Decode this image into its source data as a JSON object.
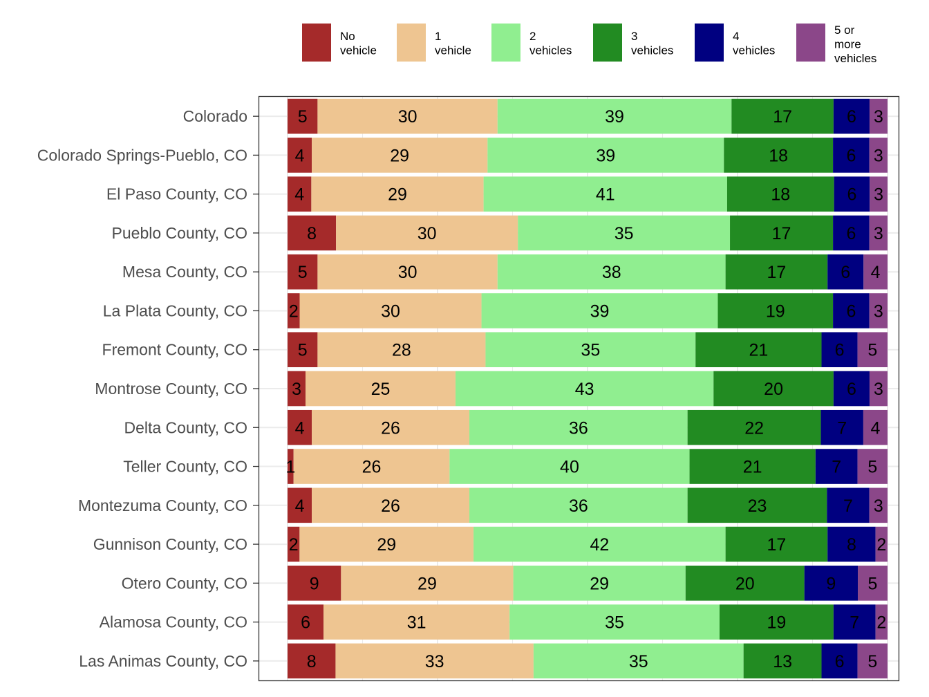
{
  "chart_data": {
    "type": "bar",
    "orientation": "horizontal",
    "stacked": true,
    "normalized_percent": true,
    "grid": true,
    "legend_position": "top",
    "categories": [
      "Colorado",
      "Colorado Springs-Pueblo, CO",
      "El Paso County, CO",
      "Pueblo County, CO",
      "Mesa County, CO",
      "La Plata County, CO",
      "Fremont County, CO",
      "Montrose County, CO",
      "Delta County, CO",
      "Teller County, CO",
      "Montezuma County, CO",
      "Gunnison County, CO",
      "Otero County, CO",
      "Alamosa County, CO",
      "Las Animas County, CO"
    ],
    "series": [
      {
        "name": "No vehicle",
        "legend_lines": [
          "No",
          "vehicle"
        ],
        "color": "#a52a2a",
        "values": [
          5,
          4,
          4,
          8,
          5,
          2,
          5,
          3,
          4,
          1,
          4,
          2,
          9,
          6,
          8
        ]
      },
      {
        "name": "1 vehicle",
        "legend_lines": [
          "1",
          "vehicle"
        ],
        "color": "#eec591",
        "values": [
          30,
          29,
          29,
          30,
          30,
          30,
          28,
          25,
          26,
          26,
          26,
          29,
          29,
          31,
          33
        ]
      },
      {
        "name": "2 vehicles",
        "legend_lines": [
          "2",
          "vehicles"
        ],
        "color": "#90ee90",
        "values": [
          39,
          39,
          41,
          35,
          38,
          39,
          35,
          43,
          36,
          40,
          36,
          42,
          29,
          35,
          35
        ]
      },
      {
        "name": "3 vehicles",
        "legend_lines": [
          "3",
          "vehicles"
        ],
        "color": "#228b22",
        "values": [
          17,
          18,
          18,
          17,
          17,
          19,
          21,
          20,
          22,
          21,
          23,
          17,
          20,
          19,
          13
        ]
      },
      {
        "name": "4 vehicles",
        "legend_lines": [
          "4",
          "vehicles"
        ],
        "color": "#000080",
        "values": [
          6,
          6,
          6,
          6,
          6,
          6,
          6,
          6,
          7,
          7,
          7,
          8,
          9,
          7,
          6
        ]
      },
      {
        "name": "5 or more vehicles",
        "legend_lines": [
          "5 or",
          "more",
          "vehicles"
        ],
        "color": "#8b4789",
        "values": [
          3,
          3,
          3,
          3,
          4,
          3,
          5,
          3,
          4,
          5,
          3,
          2,
          5,
          2,
          5
        ]
      }
    ]
  }
}
